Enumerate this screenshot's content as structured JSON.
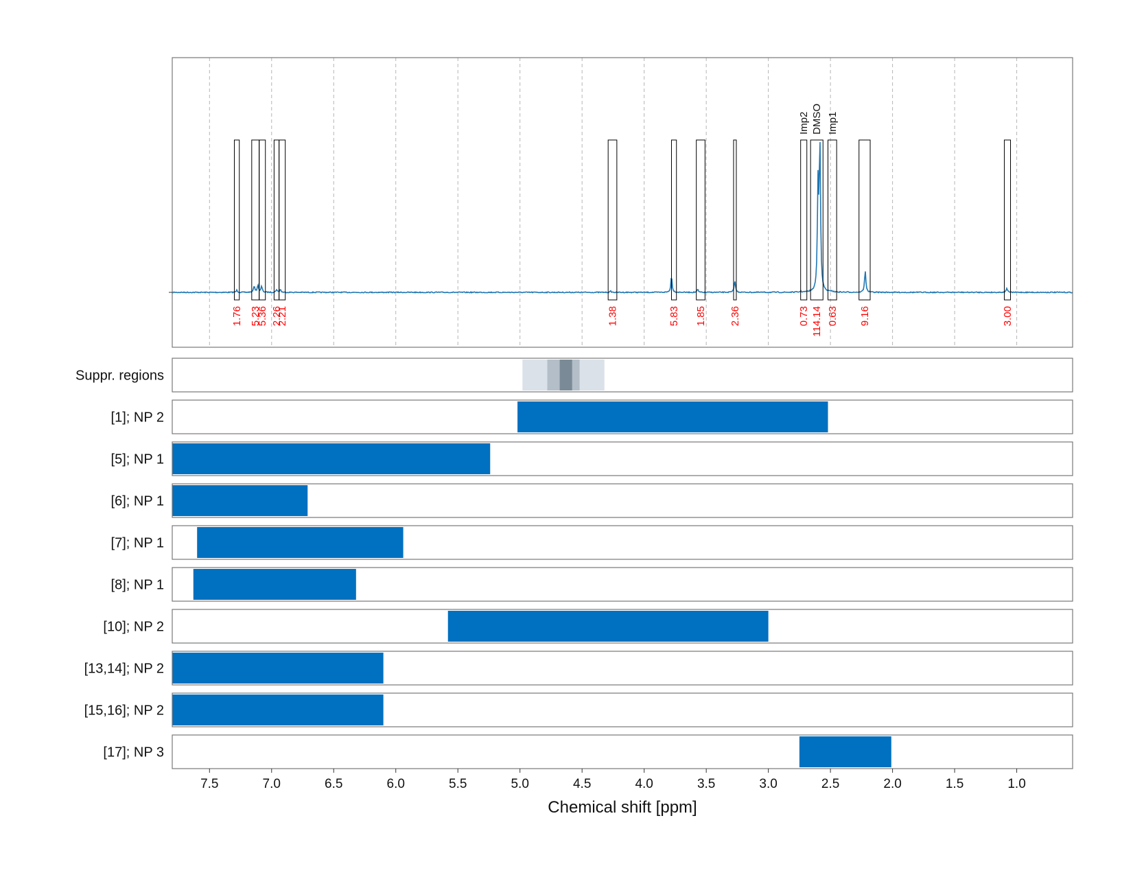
{
  "chart_data": {
    "type": "nmr-spectrum-with-range-bars",
    "xlabel": "Chemical shift [ppm]",
    "xlim": [
      7.8,
      0.55
    ],
    "x_reversed": true,
    "xticks": [
      7.5,
      7.0,
      6.5,
      6.0,
      5.5,
      5.0,
      4.5,
      4.0,
      3.5,
      3.0,
      2.5,
      2.0,
      1.5,
      1.0
    ],
    "xtick_labels": [
      "7.5",
      "7.0",
      "6.5",
      "6.0",
      "5.5",
      "5.0",
      "4.5",
      "4.0",
      "3.5",
      "3.0",
      "2.5",
      "2.0",
      "1.5",
      "1.0"
    ],
    "grid": true,
    "colors": {
      "spectrum": "#1f77b4",
      "bar": "#0070c0",
      "integral_label": "#ff0000",
      "region_box": "#000000",
      "suppr_light": "#dbe1e8",
      "suppr_dark": "#7a8b97"
    },
    "spectrum_peaks": [
      {
        "ppm": 7.28,
        "height": 0.015
      },
      {
        "ppm": 7.14,
        "height": 0.045
      },
      {
        "ppm": 7.11,
        "height": 0.05
      },
      {
        "ppm": 7.08,
        "height": 0.04
      },
      {
        "ppm": 6.96,
        "height": 0.02
      },
      {
        "ppm": 6.93,
        "height": 0.02
      },
      {
        "ppm": 4.27,
        "height": 0.008
      },
      {
        "ppm": 3.78,
        "height": 0.11
      },
      {
        "ppm": 3.57,
        "height": 0.02
      },
      {
        "ppm": 3.27,
        "height": 0.08
      },
      {
        "ppm": 2.74,
        "height": 0.006
      },
      {
        "ppm": 2.585,
        "height": 1.0
      },
      {
        "ppm": 2.6,
        "height": 0.7
      },
      {
        "ppm": 2.49,
        "height": 0.008
      },
      {
        "ppm": 2.22,
        "height": 0.15
      },
      {
        "ppm": 1.08,
        "height": 0.03
      }
    ],
    "integral_regions": [
      {
        "from": 7.3,
        "to": 7.26,
        "label": "1.76"
      },
      {
        "from": 7.16,
        "to": 7.1,
        "label": "5.23"
      },
      {
        "from": 7.1,
        "to": 7.05,
        "label": "5.36"
      },
      {
        "from": 6.98,
        "to": 6.94,
        "label": "2.26"
      },
      {
        "from": 6.94,
        "to": 6.89,
        "label": "2.21"
      },
      {
        "from": 4.29,
        "to": 4.22,
        "label": "1.38"
      },
      {
        "from": 3.78,
        "to": 3.74,
        "label": "5.83"
      },
      {
        "from": 3.58,
        "to": 3.51,
        "label": "1.85"
      },
      {
        "from": 3.28,
        "to": 3.26,
        "label": "2.36"
      },
      {
        "from": 2.74,
        "to": 2.69,
        "label": "0.73",
        "peak_label": "Imp2"
      },
      {
        "from": 2.66,
        "to": 2.56,
        "label": "114.14",
        "peak_label": "DMSO"
      },
      {
        "from": 2.52,
        "to": 2.45,
        "label": "0.63",
        "peak_label": "Imp1"
      },
      {
        "from": 2.27,
        "to": 2.18,
        "label": "9.16"
      },
      {
        "from": 1.1,
        "to": 1.05,
        "label": "3.00"
      }
    ],
    "suppr_regions": [
      {
        "from": 4.98,
        "to": 4.32,
        "shade": "light"
      },
      {
        "from": 4.78,
        "to": 4.52,
        "shade": "medium"
      },
      {
        "from": 4.68,
        "to": 4.58,
        "shade": "dark"
      }
    ],
    "rows": [
      {
        "label": "Suppr. regions"
      },
      {
        "label": "[1]; NP 2",
        "from": 5.02,
        "to": 2.52
      },
      {
        "label": "[5]; NP 1",
        "from": 7.8,
        "to": 5.24
      },
      {
        "label": "[6]; NP 1",
        "from": 7.8,
        "to": 6.71
      },
      {
        "label": "[7]; NP 1",
        "from": 7.6,
        "to": 5.94
      },
      {
        "label": "[8]; NP 1",
        "from": 7.63,
        "to": 6.32
      },
      {
        "label": "[10]; NP 2",
        "from": 5.58,
        "to": 3.0
      },
      {
        "label": "[13,14]; NP 2",
        "from": 7.8,
        "to": 6.1
      },
      {
        "label": "[15,16]; NP 2",
        "from": 7.8,
        "to": 6.1
      },
      {
        "label": "[17]; NP 3",
        "from": 2.75,
        "to": 2.01
      }
    ]
  }
}
